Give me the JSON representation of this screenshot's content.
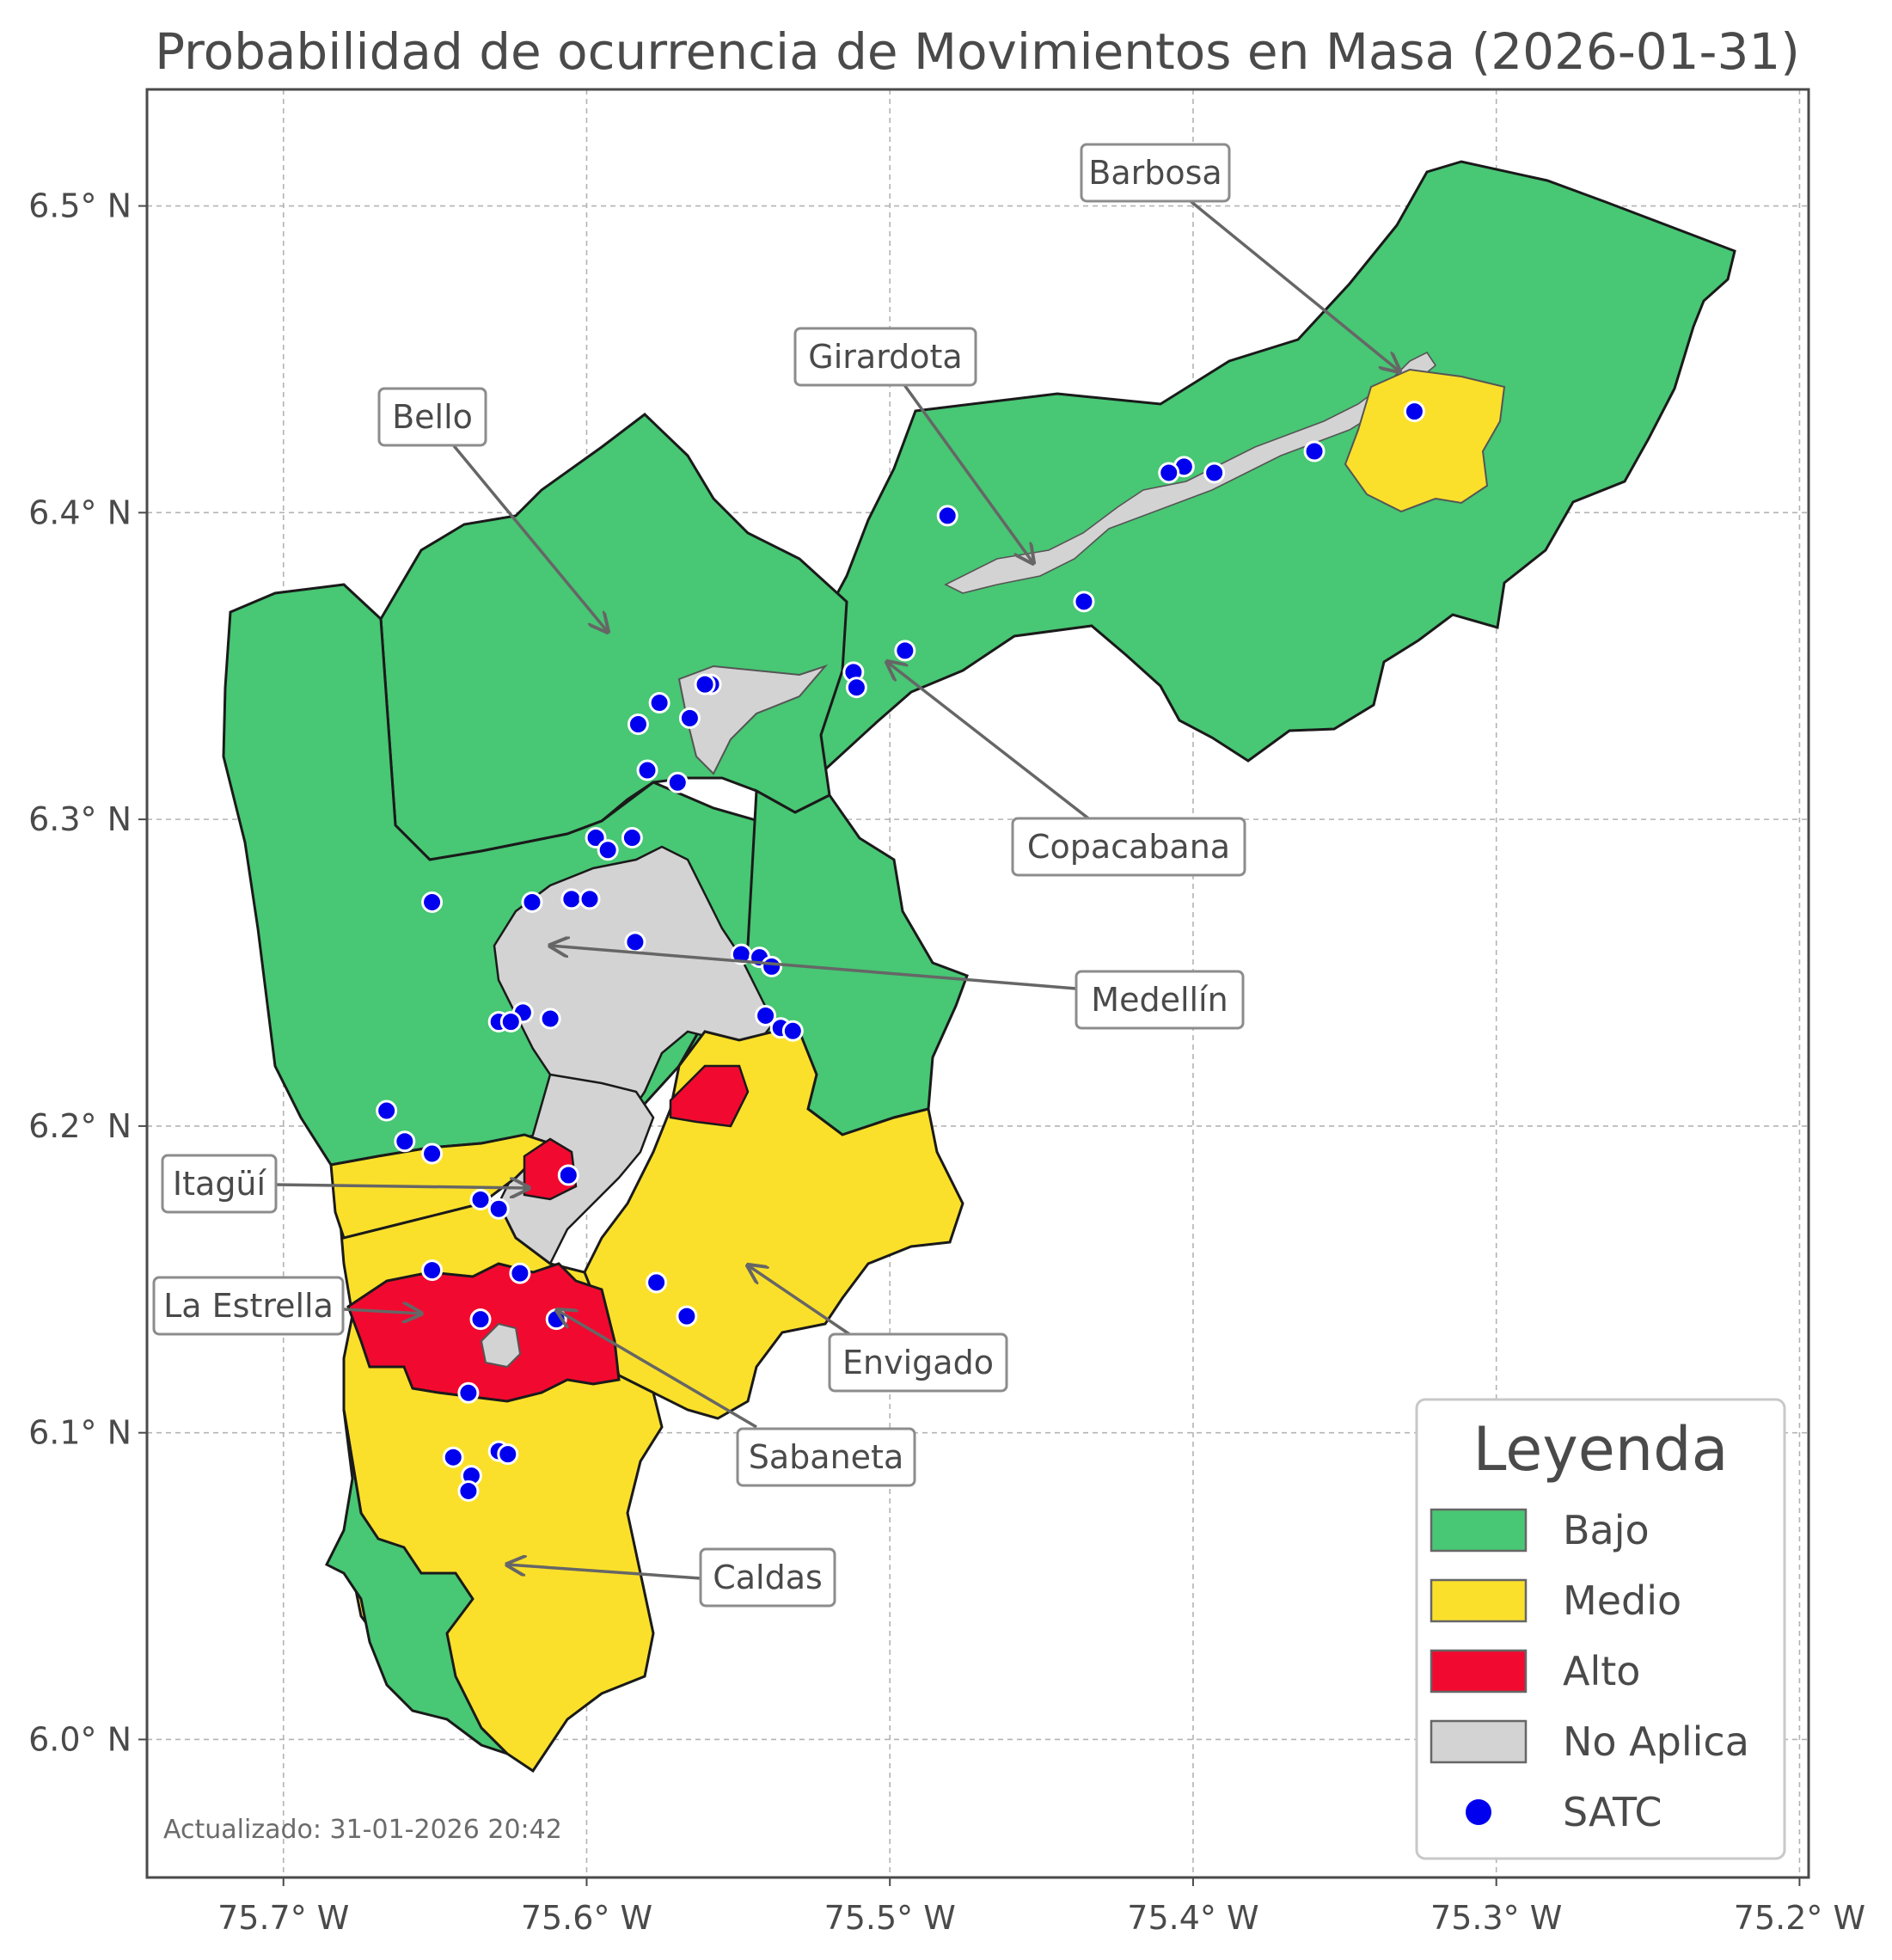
{
  "title": "Probabilidad de ocurrencia de Movimientos en Masa (2026-01-31)",
  "axes": {
    "x_ticks": [
      "75.7° W",
      "75.6° W",
      "75.5° W",
      "75.4° W",
      "75.3° W",
      "75.2° W"
    ],
    "y_ticks": [
      "6.5° N",
      "6.4° N",
      "6.3° N",
      "6.2° N",
      "6.1° N",
      "6.0° N"
    ],
    "x_range": [
      -75.745,
      -75.197
    ],
    "y_range": [
      5.955,
      6.538
    ],
    "grid": true
  },
  "legend": {
    "title": "Leyenda",
    "position": "bottom-right",
    "items": [
      {
        "label": "Bajo",
        "color": "#48C774"
      },
      {
        "label": "Medio",
        "color": "#FBE02B"
      },
      {
        "label": "Alto",
        "color": "#F2092F"
      },
      {
        "label": "No Aplica",
        "color": "#D3D3D3"
      },
      {
        "label": "SATC",
        "color": "#0000EE"
      }
    ]
  },
  "municipalities": [
    {
      "name": "Barbosa",
      "lon": -75.333,
      "lat": 6.443
    },
    {
      "name": "Girardota",
      "lon": -75.452,
      "lat": 6.381
    },
    {
      "name": "Bello",
      "lon": -75.59,
      "lat": 6.361
    },
    {
      "name": "Copacabana",
      "lon": -75.497,
      "lat": 6.35
    },
    {
      "name": "Medellín",
      "lon": -75.61,
      "lat": 6.258
    },
    {
      "name": "Itagüí",
      "lon": -75.617,
      "lat": 6.177
    },
    {
      "name": "La Estrella",
      "lon": -75.637,
      "lat": 6.137
    },
    {
      "name": "Envigado",
      "lon": -75.546,
      "lat": 6.153
    },
    {
      "name": "Sabaneta",
      "lon": -75.607,
      "lat": 6.138
    },
    {
      "name": "Caldas",
      "lon": -75.627,
      "lat": 6.055
    }
  ],
  "satc_stations": [
    [
      -75.327,
      6.433
    ],
    [
      -75.36,
      6.42
    ],
    [
      -75.393,
      6.413
    ],
    [
      -75.403,
      6.415
    ],
    [
      -75.408,
      6.413
    ],
    [
      -75.481,
      6.399
    ],
    [
      -75.436,
      6.371
    ],
    [
      -75.495,
      6.355
    ],
    [
      -75.512,
      6.348
    ],
    [
      -75.511,
      6.343
    ],
    [
      -75.559,
      6.344
    ],
    [
      -75.561,
      6.344
    ],
    [
      -75.576,
      6.338
    ],
    [
      -75.566,
      6.333
    ],
    [
      -75.583,
      6.331
    ],
    [
      -75.58,
      6.316
    ],
    [
      -75.57,
      6.312
    ],
    [
      -75.597,
      6.294
    ],
    [
      -75.585,
      6.294
    ],
    [
      -75.593,
      6.29
    ],
    [
      -75.651,
      6.273
    ],
    [
      -75.618,
      6.273
    ],
    [
      -75.605,
      6.274
    ],
    [
      -75.599,
      6.274
    ],
    [
      -75.584,
      6.26
    ],
    [
      -75.549,
      6.256
    ],
    [
      -75.543,
      6.255
    ],
    [
      -75.539,
      6.252
    ],
    [
      -75.541,
      6.236
    ],
    [
      -75.536,
      6.232
    ],
    [
      -75.532,
      6.231
    ],
    [
      -75.621,
      6.237
    ],
    [
      -75.629,
      6.234
    ],
    [
      -75.625,
      6.234
    ],
    [
      -75.612,
      6.235
    ],
    [
      -75.666,
      6.205
    ],
    [
      -75.66,
      6.195
    ],
    [
      -75.651,
      6.191
    ],
    [
      -75.606,
      6.184
    ],
    [
      -75.635,
      6.176
    ],
    [
      -75.629,
      6.173
    ],
    [
      -75.651,
      6.153
    ],
    [
      -75.622,
      6.152
    ],
    [
      -75.577,
      6.149
    ],
    [
      -75.567,
      6.138
    ],
    [
      -75.61,
      6.137
    ],
    [
      -75.635,
      6.137
    ],
    [
      -75.639,
      6.113
    ],
    [
      -75.644,
      6.092
    ],
    [
      -75.629,
      6.094
    ],
    [
      -75.626,
      6.093
    ],
    [
      -75.638,
      6.086
    ],
    [
      -75.639,
      6.081
    ]
  ],
  "footer": "Actualizado: 31-01-2026 20:42"
}
